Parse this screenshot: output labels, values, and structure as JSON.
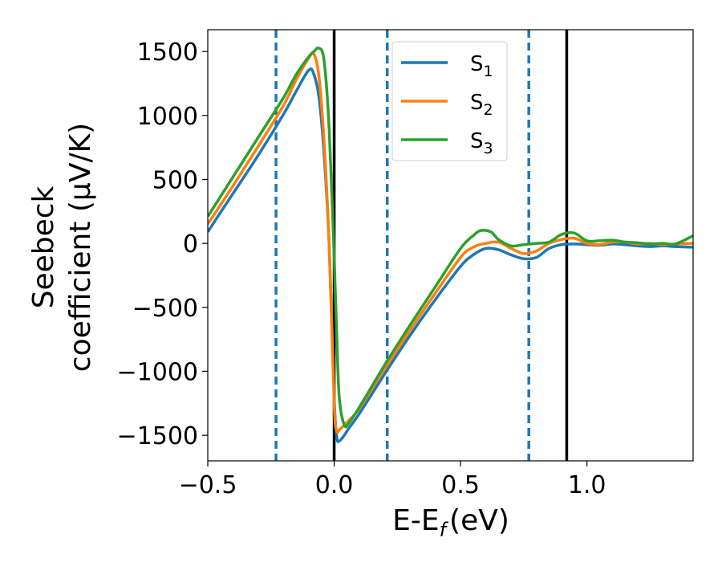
{
  "chart_data": {
    "type": "line",
    "xlabel": "E-E",
    "xlabel_subscript": "f",
    "xlabel_unit": "(eV)",
    "ylabel_line1": "Seebeck",
    "ylabel_line2": "coefficient  (μV/K)",
    "xlim": [
      -0.5,
      1.42
    ],
    "ylim": [
      -1700,
      1670
    ],
    "x_ticks": [
      -0.5,
      0.0,
      0.5,
      1.0
    ],
    "x_tick_labels": [
      "−0.5",
      "0.0",
      "0.5",
      "1.0"
    ],
    "y_ticks": [
      -1500,
      -1000,
      -500,
      0,
      500,
      1000,
      1500
    ],
    "y_tick_labels": [
      "−1500",
      "−1000",
      "−500",
      "0",
      "500",
      "1000",
      "1500"
    ],
    "grid": false,
    "legend_position": "top-center",
    "series": [
      {
        "name": "S",
        "subscript": "1",
        "color": "#1f77b4",
        "x": [
          -0.5,
          -0.4,
          -0.3,
          -0.2,
          -0.15,
          -0.1,
          -0.08,
          -0.06,
          -0.04,
          -0.02,
          0.0,
          0.01,
          0.02,
          0.04,
          0.06,
          0.1,
          0.2,
          0.3,
          0.4,
          0.5,
          0.55,
          0.6,
          0.65,
          0.7,
          0.75,
          0.8,
          0.85,
          0.9,
          0.95,
          1.0,
          1.05,
          1.1,
          1.15,
          1.2,
          1.25,
          1.3,
          1.35,
          1.42
        ],
        "y": [
          90,
          390,
          690,
          1010,
          1190,
          1355,
          1320,
          1140,
          700,
          0,
          -1200,
          -1510,
          -1545,
          -1500,
          -1440,
          -1330,
          -1020,
          -720,
          -440,
          -180,
          -90,
          -40,
          -50,
          -90,
          -120,
          -110,
          -40,
          -10,
          -5,
          -10,
          -15,
          -5,
          -10,
          -20,
          -25,
          -20,
          -25,
          -30
        ]
      },
      {
        "name": "S",
        "subscript": "2",
        "color": "#ff7f0e",
        "x": [
          -0.5,
          -0.4,
          -0.3,
          -0.2,
          -0.15,
          -0.1,
          -0.08,
          -0.06,
          -0.04,
          -0.02,
          0.0,
          0.01,
          0.02,
          0.04,
          0.06,
          0.1,
          0.2,
          0.3,
          0.4,
          0.5,
          0.55,
          0.6,
          0.65,
          0.7,
          0.75,
          0.8,
          0.85,
          0.9,
          0.95,
          1.0,
          1.05,
          1.1,
          1.15,
          1.2,
          1.25,
          1.3,
          1.35,
          1.42
        ],
        "y": [
          150,
          450,
          760,
          1080,
          1280,
          1450,
          1480,
          1300,
          800,
          0,
          -1250,
          -1460,
          -1460,
          -1420,
          -1380,
          -1290,
          -980,
          -680,
          -390,
          -110,
          -30,
          0,
          10,
          -40,
          -80,
          -60,
          0,
          30,
          40,
          0,
          -10,
          10,
          10,
          -5,
          0,
          -10,
          -5,
          0
        ]
      },
      {
        "name": "S",
        "subscript": "3",
        "color": "#2ca02c",
        "x": [
          -0.5,
          -0.4,
          -0.3,
          -0.2,
          -0.15,
          -0.1,
          -0.08,
          -0.06,
          -0.04,
          -0.02,
          0.0,
          0.01,
          0.02,
          0.04,
          0.06,
          0.1,
          0.2,
          0.3,
          0.4,
          0.5,
          0.55,
          0.58,
          0.62,
          0.65,
          0.7,
          0.75,
          0.8,
          0.85,
          0.9,
          0.95,
          1.0,
          1.05,
          1.1,
          1.15,
          1.2,
          1.25,
          1.3,
          1.35,
          1.42
        ],
        "y": [
          210,
          520,
          830,
          1140,
          1320,
          1460,
          1500,
          1525,
          1430,
          900,
          -100,
          -700,
          -1200,
          -1420,
          -1400,
          -1280,
          -950,
          -640,
          -340,
          -40,
          60,
          100,
          90,
          30,
          -20,
          -10,
          0,
          10,
          70,
          80,
          20,
          20,
          25,
          10,
          5,
          -5,
          0,
          -5,
          60
        ]
      }
    ],
    "vertical_lines": [
      {
        "x": -0.23,
        "style": "dashed",
        "color": "#1f77b4"
      },
      {
        "x": 0.0,
        "style": "solid",
        "color": "#000000"
      },
      {
        "x": 0.21,
        "style": "dashed",
        "color": "#1f77b4"
      },
      {
        "x": 0.77,
        "style": "dashed",
        "color": "#1f77b4"
      },
      {
        "x": 0.92,
        "style": "solid",
        "color": "#000000"
      }
    ]
  }
}
